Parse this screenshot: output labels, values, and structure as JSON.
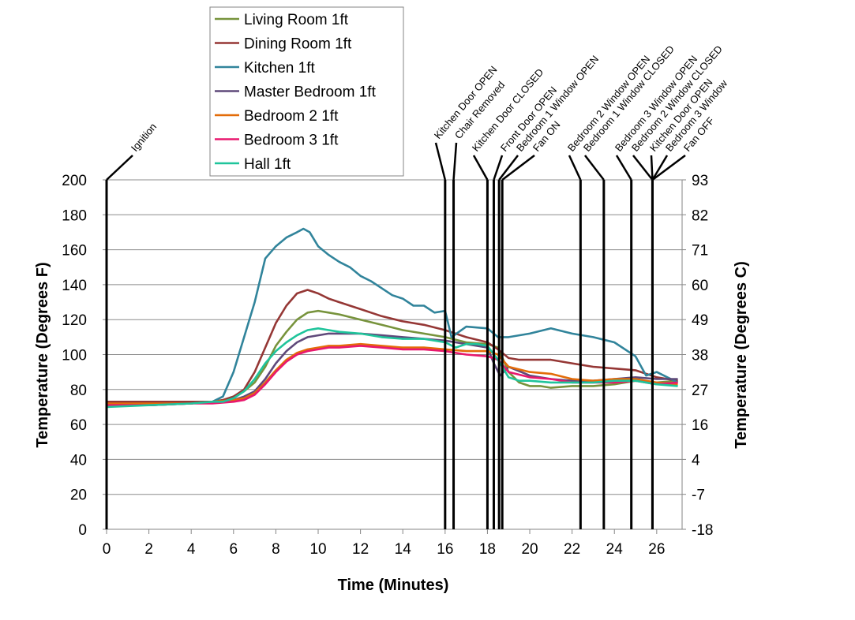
{
  "chart_data": {
    "type": "line",
    "xlabel": "Time (Minutes)",
    "ylabel": "Temperature (Degrees F)",
    "y2label": "Temperature (Degrees C)",
    "xlim": [
      0,
      27.2
    ],
    "ylim": [
      0,
      200
    ],
    "xticks": [
      "0",
      "2",
      "4",
      "6",
      "8",
      "10",
      "12",
      "14",
      "16",
      "18",
      "20",
      "22",
      "24",
      "26"
    ],
    "yticks": [
      "0",
      "20",
      "40",
      "60",
      "80",
      "100",
      "120",
      "140",
      "160",
      "180",
      "200"
    ],
    "y2ticks": [
      "-18",
      "-7",
      "4",
      "16",
      "27",
      "38",
      "49",
      "60",
      "71",
      "82",
      "93"
    ],
    "grid": "horizontal",
    "legend": "top-left",
    "events": [
      {
        "t": 0.0,
        "label": "Ignition"
      },
      {
        "t": 16.0,
        "label": "Kitchen Door OPEN"
      },
      {
        "t": 16.4,
        "label": "Chair Removed"
      },
      {
        "t": 18.0,
        "label": "Kitchen Door CLOSED"
      },
      {
        "t": 18.3,
        "label": "Front Door OPEN"
      },
      {
        "t": 18.55,
        "label": "Bedroom 1 Window OPEN"
      },
      {
        "t": 18.7,
        "label": "Fan ON"
      },
      {
        "t": 22.4,
        "label": "Bedroom 2 Window OPEN"
      },
      {
        "t": 23.5,
        "label": "Bedroom 1 Window CLOSED"
      },
      {
        "t": 24.8,
        "label": "Bedroom 3 Window OPEN"
      },
      {
        "t": 25.8,
        "label": "Bedroom 2 Window CLOSED"
      },
      {
        "t": 25.8,
        "label": "Kitchen Door OPEN"
      },
      {
        "t": 25.8,
        "label": "Bedroom 3 Window"
      },
      {
        "t": 25.8,
        "label": "Fan OFF"
      }
    ],
    "series": [
      {
        "name": "Living Room 1ft",
        "color": "#77933c",
        "x": [
          0,
          2,
          4,
          5,
          5.5,
          6,
          6.5,
          7,
          7.5,
          8,
          8.5,
          9,
          9.5,
          10,
          10.5,
          11,
          12,
          13,
          14,
          15,
          16,
          17,
          18,
          18.5,
          19,
          19.5,
          20,
          20.5,
          21,
          22,
          23,
          24,
          25,
          26,
          27
        ],
        "y": [
          72,
          72,
          73,
          73,
          74,
          76,
          79,
          84,
          93,
          105,
          113,
          120,
          124,
          125,
          124,
          123,
          120,
          117,
          114,
          112,
          110,
          107,
          106,
          104,
          90,
          84,
          82,
          82,
          81,
          82,
          82,
          83,
          85,
          84,
          85
        ]
      },
      {
        "name": "Dining Room 1ft",
        "color": "#953735",
        "x": [
          0,
          2,
          4,
          5,
          5.5,
          6,
          6.5,
          7,
          7.5,
          8,
          8.5,
          9,
          9.5,
          10,
          10.5,
          11,
          12,
          13,
          14,
          15,
          16,
          17,
          18,
          18.5,
          19,
          19.5,
          20,
          21,
          22,
          23,
          24,
          25,
          26,
          27
        ],
        "y": [
          73,
          73,
          73,
          73,
          74,
          76,
          80,
          90,
          104,
          118,
          128,
          135,
          137,
          135,
          132,
          130,
          126,
          122,
          119,
          117,
          114,
          110,
          107,
          103,
          98,
          97,
          97,
          97,
          95,
          93,
          92,
          91,
          87,
          85
        ]
      },
      {
        "name": "Kitchen 1ft",
        "color": "#31849b",
        "x": [
          0,
          2,
          4,
          5,
          5.5,
          6,
          6.5,
          7,
          7.5,
          8,
          8.5,
          9,
          9.3,
          9.6,
          10,
          10.5,
          11,
          11.5,
          12,
          12.5,
          13,
          13.5,
          14,
          14.5,
          15,
          15.5,
          16,
          16.3,
          17,
          18,
          18.5,
          19,
          20,
          21,
          22,
          23,
          24,
          25,
          25.5,
          26,
          27
        ],
        "y": [
          71,
          71,
          72,
          73,
          76,
          90,
          110,
          130,
          155,
          162,
          167,
          170,
          172,
          170,
          162,
          157,
          153,
          150,
          145,
          142,
          138,
          134,
          132,
          128,
          128,
          124,
          125,
          110,
          116,
          115,
          110,
          110,
          112,
          115,
          112,
          110,
          107,
          99,
          88,
          90,
          84
        ]
      },
      {
        "name": "Master Bedroom 1ft",
        "color": "#5f497a",
        "x": [
          0,
          2,
          4,
          5,
          5.5,
          6,
          6.5,
          7,
          7.5,
          8,
          8.5,
          9,
          9.5,
          10,
          10.5,
          11,
          12,
          13,
          14,
          15,
          16,
          17,
          18,
          18.3,
          18.6,
          19,
          20,
          21,
          22,
          23,
          24,
          25,
          26,
          27
        ],
        "y": [
          71,
          71,
          72,
          73,
          73,
          74,
          76,
          79,
          86,
          95,
          102,
          107,
          110,
          111,
          112,
          112,
          112,
          111,
          110,
          109,
          108,
          106,
          104,
          95,
          88,
          93,
          88,
          86,
          85,
          85,
          86,
          87,
          86,
          86
        ]
      },
      {
        "name": "Bedroom 2 1ft",
        "color": "#e36c09",
        "x": [
          0,
          2,
          4,
          5,
          6,
          6.5,
          7,
          7.5,
          8,
          8.5,
          9,
          9.5,
          10,
          10.5,
          11,
          12,
          13,
          14,
          15,
          16,
          17,
          18,
          18.5,
          19,
          20,
          21,
          22,
          23,
          24,
          25,
          26,
          27
        ],
        "y": [
          72,
          72,
          72,
          73,
          74,
          75,
          78,
          84,
          91,
          97,
          101,
          103,
          104,
          105,
          105,
          106,
          105,
          104,
          104,
          103,
          102,
          102,
          100,
          93,
          90,
          89,
          86,
          85,
          86,
          86,
          84,
          83
        ]
      },
      {
        "name": "Bedroom 3 1ft",
        "color": "#e8186e",
        "x": [
          0,
          2,
          4,
          5,
          6,
          6.5,
          7,
          7.5,
          8,
          8.5,
          9,
          9.5,
          10,
          10.5,
          11,
          12,
          13,
          14,
          15,
          16,
          17,
          18,
          18.5,
          19,
          20,
          21,
          22,
          23,
          24,
          25,
          26,
          27
        ],
        "y": [
          71,
          71,
          72,
          72,
          73,
          74,
          77,
          83,
          90,
          96,
          100,
          102,
          103,
          104,
          104,
          105,
          104,
          103,
          103,
          102,
          100,
          99,
          97,
          90,
          87,
          86,
          84,
          84,
          84,
          85,
          83,
          84
        ]
      },
      {
        "name": "Hall 1ft",
        "color": "#1fc49b",
        "x": [
          0,
          2,
          4,
          5,
          5.5,
          6,
          6.5,
          7,
          7.5,
          8,
          8.5,
          9,
          9.5,
          10,
          10.5,
          11,
          12,
          13,
          14,
          15,
          16,
          16.5,
          17,
          17.5,
          18,
          18.5,
          19,
          19.5,
          20,
          21,
          22,
          23,
          24,
          25,
          26,
          27
        ],
        "y": [
          70,
          71,
          72,
          73,
          73,
          75,
          79,
          86,
          95,
          102,
          107,
          111,
          114,
          115,
          114,
          113,
          112,
          110,
          109,
          109,
          107,
          104,
          106,
          106,
          105,
          97,
          87,
          85,
          85,
          84,
          84,
          84,
          85,
          85,
          83,
          82
        ]
      }
    ]
  }
}
